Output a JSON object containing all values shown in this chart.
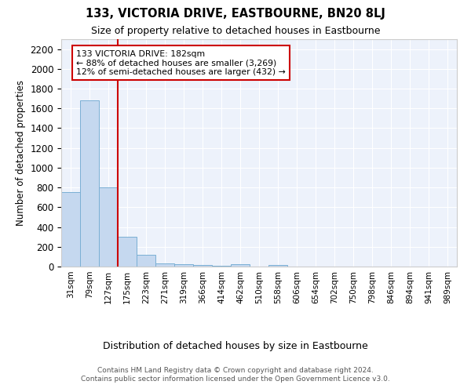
{
  "title": "133, VICTORIA DRIVE, EASTBOURNE, BN20 8LJ",
  "subtitle": "Size of property relative to detached houses in Eastbourne",
  "xlabel": "Distribution of detached houses by size in Eastbourne",
  "ylabel": "Number of detached properties",
  "footer_line1": "Contains HM Land Registry data © Crown copyright and database right 2024.",
  "footer_line2": "Contains public sector information licensed under the Open Government Licence v3.0.",
  "categories": [
    "31sqm",
    "79sqm",
    "127sqm",
    "175sqm",
    "223sqm",
    "271sqm",
    "319sqm",
    "366sqm",
    "414sqm",
    "462sqm",
    "510sqm",
    "558sqm",
    "606sqm",
    "654sqm",
    "702sqm",
    "750sqm",
    "798sqm",
    "846sqm",
    "894sqm",
    "941sqm",
    "989sqm"
  ],
  "values": [
    750,
    1680,
    800,
    300,
    120,
    35,
    20,
    15,
    10,
    20,
    0,
    15,
    0,
    0,
    0,
    0,
    0,
    0,
    0,
    0,
    0
  ],
  "bar_color": "#c5d8ef",
  "bar_edge_color": "#7aafd4",
  "ylim": [
    0,
    2300
  ],
  "yticks": [
    0,
    200,
    400,
    600,
    800,
    1000,
    1200,
    1400,
    1600,
    1800,
    2000,
    2200
  ],
  "red_line_x": 2.5,
  "annotation_text": "133 VICTORIA DRIVE: 182sqm\n← 88% of detached houses are smaller (3,269)\n12% of semi-detached houses are larger (432) →",
  "annotation_box_color": "#ffffff",
  "annotation_box_edge": "#cc0000",
  "red_line_color": "#cc0000",
  "plot_bg_color": "#edf2fb"
}
